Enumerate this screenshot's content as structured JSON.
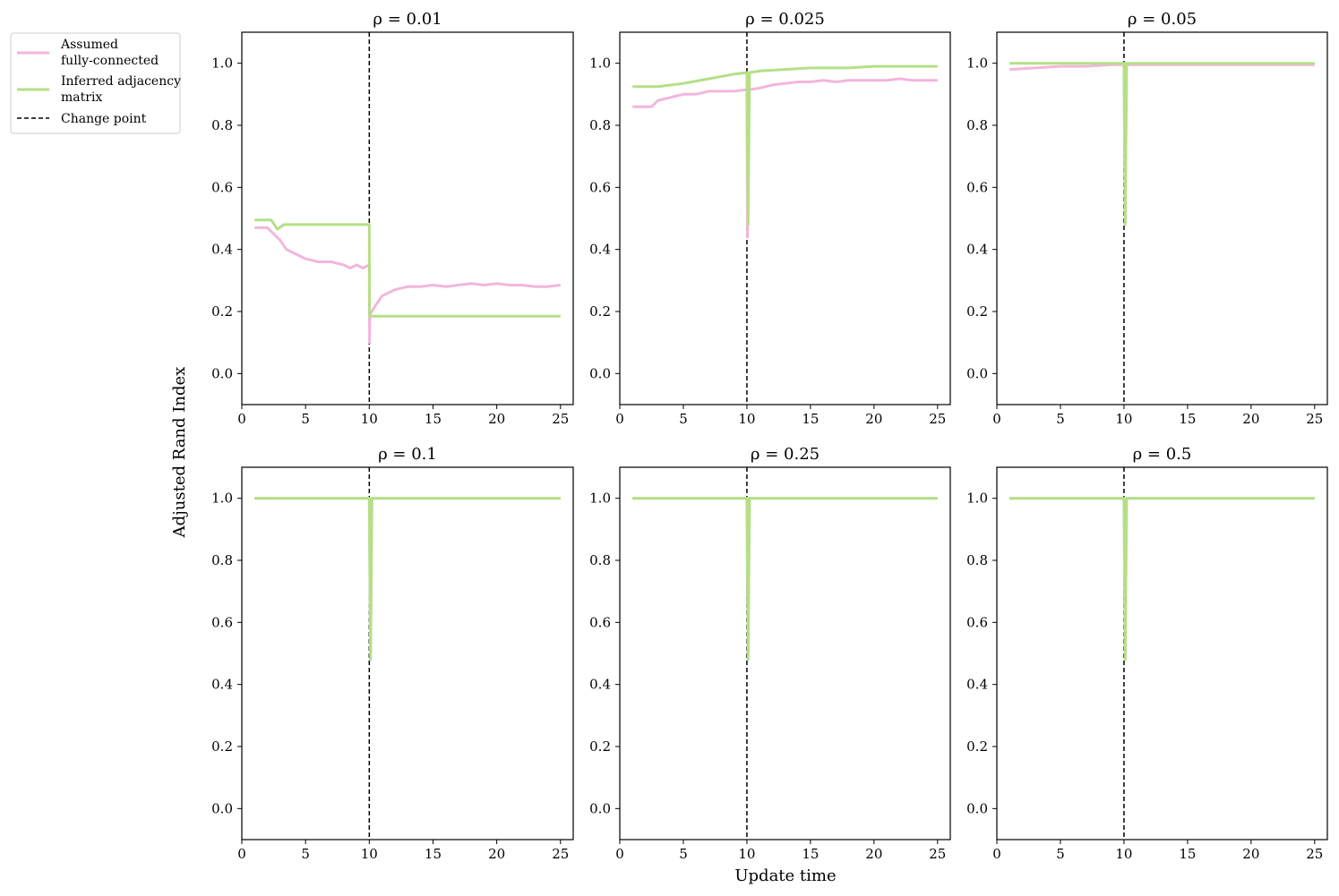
{
  "figure": {
    "xlabel": "Update time",
    "ylabel": "Adjusted Rand Index"
  },
  "legend": {
    "entries": [
      {
        "lines": [
          "Assumed",
          "fully-connected"
        ],
        "style": "solid",
        "color": "#f2b6dc"
      },
      {
        "lines": [
          "Inferred adjacency",
          "matrix"
        ],
        "style": "solid",
        "color": "#b5df87"
      },
      {
        "lines": [
          "Change point"
        ],
        "style": "dashed",
        "color": "#000000"
      }
    ]
  },
  "colors": {
    "assumed": "#f2b6dc",
    "inferred": "#b5df87",
    "change_point": "#000000"
  },
  "chart_data": [
    {
      "type": "line",
      "title": "ρ = 0.01",
      "xlim": [
        0,
        26
      ],
      "ylim": [
        -0.1,
        1.1
      ],
      "xticks": [
        0,
        5,
        10,
        15,
        20,
        25
      ],
      "yticks": [
        "0.0",
        "0.2",
        "0.4",
        "0.6",
        "0.8",
        "1.0"
      ],
      "change_point": 10,
      "series": [
        {
          "name": "Assumed fully-connected",
          "x": [
            1,
            2,
            2.5,
            3,
            3.5,
            4,
            5,
            6,
            7,
            8,
            8.5,
            9,
            9.5,
            10,
            10.02,
            10.05,
            10.5,
            11,
            12,
            13,
            14,
            15,
            16,
            17,
            18,
            19,
            20,
            21,
            22,
            23,
            24,
            25
          ],
          "y": [
            0.47,
            0.47,
            0.45,
            0.43,
            0.4,
            0.39,
            0.37,
            0.36,
            0.36,
            0.35,
            0.34,
            0.35,
            0.34,
            0.35,
            0.1,
            0.19,
            0.22,
            0.25,
            0.27,
            0.28,
            0.28,
            0.285,
            0.28,
            0.285,
            0.29,
            0.285,
            0.29,
            0.285,
            0.285,
            0.28,
            0.28,
            0.285
          ]
        },
        {
          "name": "Inferred adjacency matrix",
          "x": [
            1,
            2,
            2.3,
            2.8,
            3.3,
            4,
            6,
            8,
            10,
            10.02,
            11,
            15,
            20,
            25
          ],
          "y": [
            0.495,
            0.495,
            0.495,
            0.465,
            0.48,
            0.48,
            0.48,
            0.48,
            0.48,
            0.185,
            0.185,
            0.185,
            0.185,
            0.185
          ]
        }
      ]
    },
    {
      "type": "line",
      "title": "ρ = 0.025",
      "xlim": [
        0,
        26
      ],
      "ylim": [
        -0.1,
        1.1
      ],
      "xticks": [
        0,
        5,
        10,
        15,
        20,
        25
      ],
      "yticks": [
        "0.0",
        "0.2",
        "0.4",
        "0.6",
        "0.8",
        "1.0"
      ],
      "change_point": 10,
      "series": [
        {
          "name": "Assumed fully-connected",
          "x": [
            1,
            2,
            2.5,
            3,
            4,
            5,
            6,
            7,
            8,
            9,
            10,
            10.05,
            10.1,
            10.2,
            11,
            12,
            13,
            14,
            15,
            16,
            17,
            18,
            19,
            20,
            21,
            22,
            23,
            24,
            25
          ],
          "y": [
            0.86,
            0.86,
            0.86,
            0.88,
            0.89,
            0.9,
            0.9,
            0.91,
            0.91,
            0.91,
            0.915,
            0.44,
            0.91,
            0.915,
            0.92,
            0.93,
            0.935,
            0.94,
            0.94,
            0.945,
            0.94,
            0.945,
            0.945,
            0.945,
            0.945,
            0.95,
            0.945,
            0.945,
            0.945
          ]
        },
        {
          "name": "Inferred adjacency matrix",
          "x": [
            1,
            3,
            5,
            7,
            9,
            10,
            10.1,
            10.2,
            11,
            13,
            15,
            18,
            20,
            23,
            25
          ],
          "y": [
            0.925,
            0.925,
            0.935,
            0.95,
            0.965,
            0.97,
            0.48,
            0.97,
            0.975,
            0.98,
            0.985,
            0.985,
            0.99,
            0.99,
            0.99
          ]
        }
      ]
    },
    {
      "type": "line",
      "title": "ρ = 0.05",
      "xlim": [
        0,
        26
      ],
      "ylim": [
        -0.1,
        1.1
      ],
      "xticks": [
        0,
        5,
        10,
        15,
        20,
        25
      ],
      "yticks": [
        "0.0",
        "0.2",
        "0.4",
        "0.6",
        "0.8",
        "1.0"
      ],
      "change_point": 10,
      "series": [
        {
          "name": "Assumed fully-connected",
          "x": [
            1,
            3,
            5,
            7,
            9,
            10,
            10.1,
            10.2,
            12,
            15,
            20,
            25
          ],
          "y": [
            0.98,
            0.985,
            0.99,
            0.99,
            0.995,
            0.995,
            0.5,
            0.995,
            0.995,
            0.995,
            0.995,
            0.995
          ]
        },
        {
          "name": "Inferred adjacency matrix",
          "x": [
            1,
            5,
            10,
            10.1,
            10.2,
            15,
            20,
            25
          ],
          "y": [
            1.0,
            1.0,
            1.0,
            0.48,
            1.0,
            1.0,
            1.0,
            1.0
          ]
        }
      ]
    },
    {
      "type": "line",
      "title": "ρ = 0.1",
      "xlim": [
        0,
        26
      ],
      "ylim": [
        -0.1,
        1.1
      ],
      "xticks": [
        0,
        5,
        10,
        15,
        20,
        25
      ],
      "yticks": [
        "0.0",
        "0.2",
        "0.4",
        "0.6",
        "0.8",
        "1.0"
      ],
      "change_point": 10,
      "series": [
        {
          "name": "Assumed fully-connected",
          "x": [
            1,
            5,
            10,
            10.1,
            10.2,
            15,
            20,
            25
          ],
          "y": [
            1.0,
            1.0,
            1.0,
            0.5,
            1.0,
            1.0,
            1.0,
            1.0
          ]
        },
        {
          "name": "Inferred adjacency matrix",
          "x": [
            1,
            5,
            10,
            10.1,
            10.2,
            15,
            20,
            25
          ],
          "y": [
            1.0,
            1.0,
            1.0,
            0.48,
            1.0,
            1.0,
            1.0,
            1.0
          ]
        }
      ]
    },
    {
      "type": "line",
      "title": "ρ = 0.25",
      "xlim": [
        0,
        26
      ],
      "ylim": [
        -0.1,
        1.1
      ],
      "xticks": [
        0,
        5,
        10,
        15,
        20,
        25
      ],
      "yticks": [
        "0.0",
        "0.2",
        "0.4",
        "0.6",
        "0.8",
        "1.0"
      ],
      "change_point": 10,
      "series": [
        {
          "name": "Assumed fully-connected",
          "x": [
            1,
            5,
            10,
            10.1,
            10.2,
            15,
            20,
            25
          ],
          "y": [
            1.0,
            1.0,
            1.0,
            0.5,
            1.0,
            1.0,
            1.0,
            1.0
          ]
        },
        {
          "name": "Inferred adjacency matrix",
          "x": [
            1,
            5,
            10,
            10.1,
            10.2,
            15,
            20,
            25
          ],
          "y": [
            1.0,
            1.0,
            1.0,
            0.48,
            1.0,
            1.0,
            1.0,
            1.0
          ]
        }
      ]
    },
    {
      "type": "line",
      "title": "ρ = 0.5",
      "xlim": [
        0,
        26
      ],
      "ylim": [
        -0.1,
        1.1
      ],
      "xticks": [
        0,
        5,
        10,
        15,
        20,
        25
      ],
      "yticks": [
        "0.0",
        "0.2",
        "0.4",
        "0.6",
        "0.8",
        "1.0"
      ],
      "change_point": 10,
      "series": [
        {
          "name": "Assumed fully-connected",
          "x": [
            1,
            5,
            10,
            10.1,
            10.2,
            15,
            20,
            25
          ],
          "y": [
            1.0,
            1.0,
            1.0,
            0.5,
            1.0,
            1.0,
            1.0,
            1.0
          ]
        },
        {
          "name": "Inferred adjacency matrix",
          "x": [
            1,
            5,
            10,
            10.1,
            10.2,
            15,
            20,
            25
          ],
          "y": [
            1.0,
            1.0,
            1.0,
            0.48,
            1.0,
            1.0,
            1.0,
            1.0
          ]
        }
      ]
    }
  ]
}
